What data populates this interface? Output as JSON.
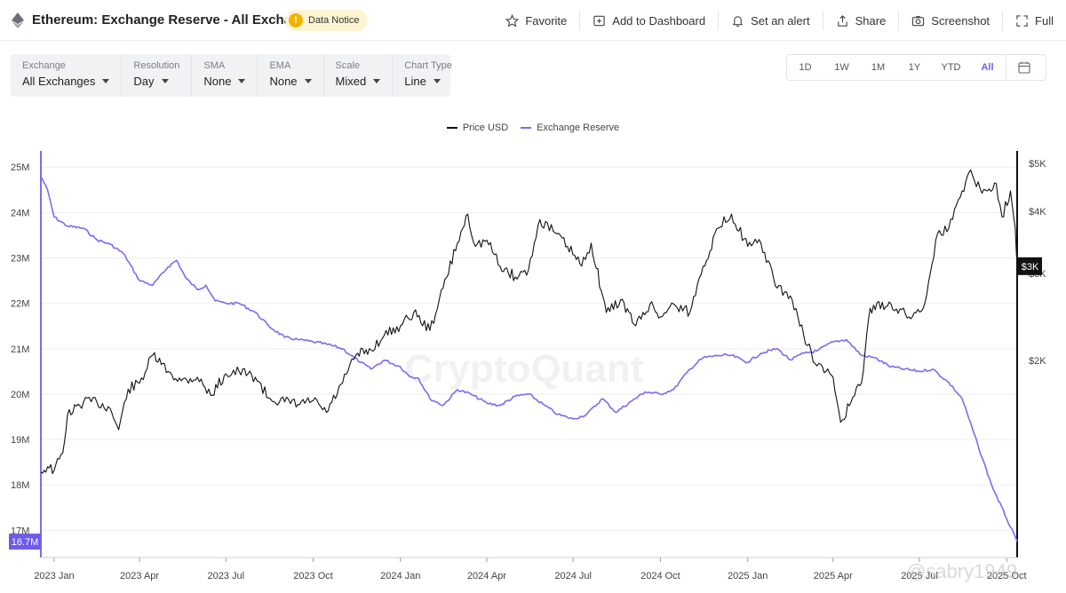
{
  "header": {
    "title": "Ethereum: Exchange Reserve - All Exchanges",
    "notice_label": "Data Notice",
    "actions": [
      {
        "label": "Favorite",
        "icon": "star-icon"
      },
      {
        "label": "Add to Dashboard",
        "icon": "add-dashboard-icon"
      },
      {
        "label": "Set an alert",
        "icon": "bell-icon"
      },
      {
        "label": "Share",
        "icon": "share-icon"
      },
      {
        "label": "Screenshot",
        "icon": "camera-icon"
      },
      {
        "label": "Full",
        "icon": "fullscreen-icon"
      }
    ]
  },
  "selectors": [
    {
      "label": "Exchange",
      "value": "All Exchanges"
    },
    {
      "label": "Resolution",
      "value": "Day"
    },
    {
      "label": "SMA",
      "value": "None"
    },
    {
      "label": "EMA",
      "value": "None"
    },
    {
      "label": "Scale",
      "value": "Mixed"
    },
    {
      "label": "Chart Type",
      "value": "Line"
    }
  ],
  "ranges": [
    "1D",
    "1W",
    "1M",
    "1Y",
    "YTD",
    "All"
  ],
  "active_range": "All",
  "watermark": "CryptoQuant",
  "footer_mark": "@sabry1949",
  "colors": {
    "price": "#111111",
    "reserve": "#7b6cf0",
    "accent": "#6c5ce7",
    "current_price_bg": "#111111"
  },
  "chart_data": {
    "type": "line",
    "legend": [
      "Price USD",
      "Exchange Reserve"
    ],
    "legend_position": "top-center",
    "grid": true,
    "x": {
      "ticks": [
        "2023 Jan",
        "2023 Apr",
        "2023 Jul",
        "2023 Oct",
        "2024 Jan",
        "2024 Apr",
        "2024 Jul",
        "2024 Oct",
        "2025 Jan",
        "2025 Apr",
        "2025 Jul",
        "2025 Oct"
      ],
      "range": [
        "2022-12-18",
        "2025-10-12"
      ]
    },
    "y_left": {
      "series": "Exchange Reserve",
      "ticks": [
        "25M",
        "24M",
        "23M",
        "22M",
        "21M",
        "20M",
        "19M",
        "18M",
        "17M"
      ],
      "ylim": [
        16.4,
        25.2
      ],
      "current_label": "16.7M"
    },
    "y_right": {
      "series": "Price USD",
      "scale": "log",
      "ticks": [
        "$5K",
        "$4K",
        "$3K",
        "$2K"
      ],
      "current_label": "$3K"
    },
    "series": [
      {
        "name": "Exchange Reserve",
        "axis": "left",
        "points": [
          [
            "2022-12-18",
            24.8
          ],
          [
            "2022-12-25",
            24.5
          ],
          [
            "2023-01-01",
            23.9
          ],
          [
            "2023-01-15",
            23.7
          ],
          [
            "2023-02-01",
            23.65
          ],
          [
            "2023-02-15",
            23.4
          ],
          [
            "2023-03-01",
            23.3
          ],
          [
            "2023-03-15",
            23.1
          ],
          [
            "2023-04-01",
            22.5
          ],
          [
            "2023-04-15",
            22.4
          ],
          [
            "2023-05-01",
            22.8
          ],
          [
            "2023-05-10",
            22.95
          ],
          [
            "2023-05-20",
            22.55
          ],
          [
            "2023-06-01",
            22.3
          ],
          [
            "2023-06-10",
            22.4
          ],
          [
            "2023-06-20",
            22.05
          ],
          [
            "2023-07-01",
            22.0
          ],
          [
            "2023-07-15",
            22.0
          ],
          [
            "2023-08-01",
            21.8
          ],
          [
            "2023-08-15",
            21.5
          ],
          [
            "2023-09-01",
            21.25
          ],
          [
            "2023-09-15",
            21.2
          ],
          [
            "2023-10-01",
            21.15
          ],
          [
            "2023-10-15",
            21.1
          ],
          [
            "2023-11-01",
            21.0
          ],
          [
            "2023-11-10",
            20.85
          ],
          [
            "2023-11-20",
            20.7
          ],
          [
            "2023-12-01",
            20.55
          ],
          [
            "2023-12-15",
            20.75
          ],
          [
            "2024-01-01",
            20.6
          ],
          [
            "2024-01-10",
            20.4
          ],
          [
            "2024-01-20",
            20.35
          ],
          [
            "2024-02-01",
            19.9
          ],
          [
            "2024-02-15",
            19.75
          ],
          [
            "2024-03-01",
            20.1
          ],
          [
            "2024-03-15",
            20.0
          ],
          [
            "2024-04-01",
            19.8
          ],
          [
            "2024-04-15",
            19.75
          ],
          [
            "2024-05-01",
            19.95
          ],
          [
            "2024-05-15",
            20.0
          ],
          [
            "2024-06-01",
            19.75
          ],
          [
            "2024-06-15",
            19.55
          ],
          [
            "2024-07-01",
            19.45
          ],
          [
            "2024-07-15",
            19.55
          ],
          [
            "2024-08-01",
            19.9
          ],
          [
            "2024-08-15",
            19.6
          ],
          [
            "2024-09-01",
            19.85
          ],
          [
            "2024-09-15",
            20.05
          ],
          [
            "2024-10-01",
            20.0
          ],
          [
            "2024-10-15",
            20.1
          ],
          [
            "2024-11-01",
            20.55
          ],
          [
            "2024-11-15",
            20.8
          ],
          [
            "2024-12-01",
            20.85
          ],
          [
            "2024-12-15",
            20.85
          ],
          [
            "2025-01-01",
            20.7
          ],
          [
            "2025-01-15",
            20.9
          ],
          [
            "2025-02-01",
            21.0
          ],
          [
            "2025-02-15",
            20.75
          ],
          [
            "2025-03-01",
            20.9
          ],
          [
            "2025-03-15",
            20.95
          ],
          [
            "2025-04-01",
            21.15
          ],
          [
            "2025-04-15",
            21.2
          ],
          [
            "2025-05-01",
            20.85
          ],
          [
            "2025-05-15",
            20.8
          ],
          [
            "2025-06-01",
            20.6
          ],
          [
            "2025-06-15",
            20.55
          ],
          [
            "2025-07-01",
            20.5
          ],
          [
            "2025-07-15",
            20.55
          ],
          [
            "2025-08-01",
            20.25
          ],
          [
            "2025-08-15",
            19.9
          ],
          [
            "2025-09-01",
            18.85
          ],
          [
            "2025-09-15",
            18.0
          ],
          [
            "2025-10-01",
            17.25
          ],
          [
            "2025-10-12",
            16.75
          ]
        ]
      },
      {
        "name": "Price USD",
        "axis": "right",
        "points": [
          [
            "2022-12-18",
            1190
          ],
          [
            "2022-12-25",
            1220
          ],
          [
            "2023-01-01",
            1200
          ],
          [
            "2023-01-10",
            1300
          ],
          [
            "2023-01-15",
            1550
          ],
          [
            "2023-02-01",
            1650
          ],
          [
            "2023-02-15",
            1650
          ],
          [
            "2023-03-01",
            1600
          ],
          [
            "2023-03-10",
            1450
          ],
          [
            "2023-03-20",
            1750
          ],
          [
            "2023-04-01",
            1800
          ],
          [
            "2023-04-15",
            2050
          ],
          [
            "2023-05-01",
            1900
          ],
          [
            "2023-05-15",
            1820
          ],
          [
            "2023-06-01",
            1850
          ],
          [
            "2023-06-15",
            1700
          ],
          [
            "2023-07-01",
            1880
          ],
          [
            "2023-07-15",
            1900
          ],
          [
            "2023-08-01",
            1850
          ],
          [
            "2023-08-15",
            1680
          ],
          [
            "2023-09-01",
            1650
          ],
          [
            "2023-09-15",
            1630
          ],
          [
            "2023-10-01",
            1660
          ],
          [
            "2023-10-15",
            1570
          ],
          [
            "2023-11-01",
            1800
          ],
          [
            "2023-11-15",
            2050
          ],
          [
            "2023-12-01",
            2100
          ],
          [
            "2023-12-15",
            2250
          ],
          [
            "2024-01-01",
            2350
          ],
          [
            "2024-01-15",
            2500
          ],
          [
            "2024-02-01",
            2300
          ],
          [
            "2024-02-15",
            2800
          ],
          [
            "2024-03-01",
            3450
          ],
          [
            "2024-03-12",
            3950
          ],
          [
            "2024-03-20",
            3400
          ],
          [
            "2024-04-01",
            3500
          ],
          [
            "2024-04-15",
            3100
          ],
          [
            "2024-05-01",
            2950
          ],
          [
            "2024-05-15",
            3050
          ],
          [
            "2024-05-27",
            3850
          ],
          [
            "2024-06-10",
            3650
          ],
          [
            "2024-06-25",
            3400
          ],
          [
            "2024-07-10",
            3100
          ],
          [
            "2024-07-20",
            3450
          ],
          [
            "2024-08-05",
            2500
          ],
          [
            "2024-08-20",
            2650
          ],
          [
            "2024-09-05",
            2350
          ],
          [
            "2024-09-20",
            2600
          ],
          [
            "2024-10-01",
            2450
          ],
          [
            "2024-10-15",
            2600
          ],
          [
            "2024-11-01",
            2500
          ],
          [
            "2024-11-15",
            3100
          ],
          [
            "2024-12-01",
            3700
          ],
          [
            "2024-12-15",
            3950
          ],
          [
            "2025-01-01",
            3400
          ],
          [
            "2025-01-15",
            3450
          ],
          [
            "2025-02-01",
            2800
          ],
          [
            "2025-02-15",
            2700
          ],
          [
            "2025-03-01",
            2250
          ],
          [
            "2025-03-15",
            1950
          ],
          [
            "2025-04-01",
            1850
          ],
          [
            "2025-04-09",
            1500
          ],
          [
            "2025-04-20",
            1650
          ],
          [
            "2025-05-01",
            1800
          ],
          [
            "2025-05-10",
            2550
          ],
          [
            "2025-06-01",
            2600
          ],
          [
            "2025-06-20",
            2450
          ],
          [
            "2025-07-05",
            2550
          ],
          [
            "2025-07-20",
            3600
          ],
          [
            "2025-08-01",
            3700
          ],
          [
            "2025-08-15",
            4400
          ],
          [
            "2025-08-24",
            4850
          ],
          [
            "2025-09-05",
            4350
          ],
          [
            "2025-09-20",
            4550
          ],
          [
            "2025-09-26",
            3900
          ],
          [
            "2025-10-05",
            4400
          ],
          [
            "2025-10-10",
            3700
          ],
          [
            "2025-10-12",
            3100
          ]
        ]
      }
    ]
  }
}
